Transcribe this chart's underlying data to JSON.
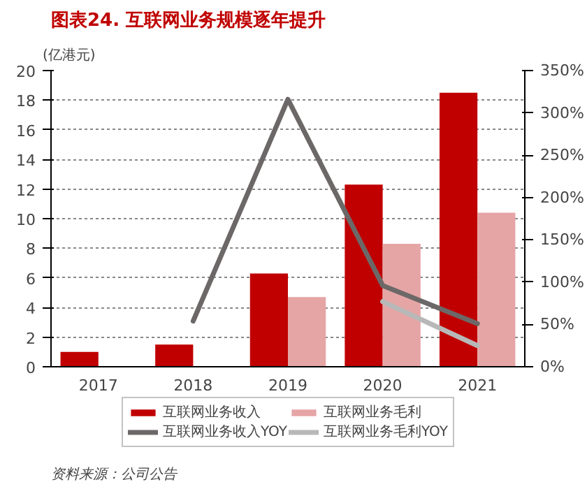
{
  "chart_data": {
    "type": "bar",
    "title": "图表24. 互联网业务规模逐年提升",
    "ylabel": "(亿港元)",
    "categories": [
      "2017",
      "2018",
      "2019",
      "2020",
      "2021"
    ],
    "series": [
      {
        "name": "互联网业务收入",
        "color": "#c00000",
        "values": [
          1.0,
          1.5,
          6.3,
          12.3,
          18.5
        ]
      },
      {
        "name": "互联网业务毛利",
        "color": "#e6a5a5",
        "values": [
          null,
          null,
          4.7,
          8.3,
          10.4
        ]
      },
      {
        "name": "互联网业务收入YOY",
        "type": "line",
        "axis": "y2",
        "color": "#6d6868",
        "values": [
          null,
          54,
          316,
          96,
          51
        ]
      },
      {
        "name": "互联网业务毛利YOY",
        "type": "line",
        "axis": "y2",
        "color": "#b8b8b8",
        "values": [
          null,
          null,
          null,
          77,
          25
        ]
      }
    ],
    "ylim": [
      0,
      20
    ],
    "yticks": [
      0,
      2,
      4,
      6,
      8,
      10,
      12,
      14,
      16,
      18,
      20
    ],
    "y2lim": [
      0,
      350
    ],
    "y2ticks": [
      {
        "value": 0,
        "label": "0%"
      },
      {
        "value": 50,
        "label": "50%"
      },
      {
        "value": 100,
        "label": "100%"
      },
      {
        "value": 150,
        "label": "150%"
      },
      {
        "value": 200,
        "label": "200%"
      },
      {
        "value": 250,
        "label": "250%"
      },
      {
        "value": 300,
        "label": "300%"
      },
      {
        "value": 350,
        "label": "350%"
      }
    ],
    "grid": "y",
    "legend": "bottom",
    "annotations": [
      "资料来源：公司公告"
    ]
  }
}
